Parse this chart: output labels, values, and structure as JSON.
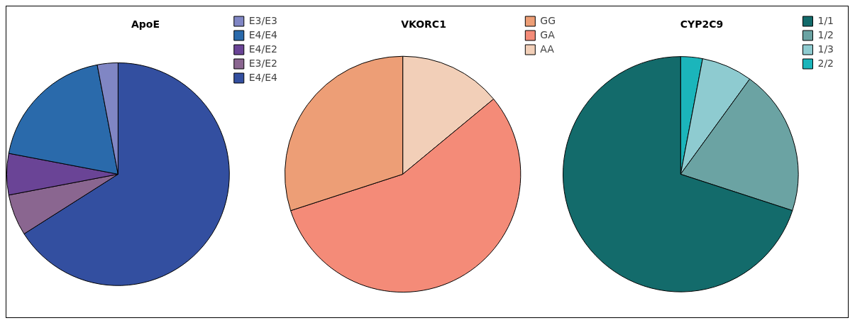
{
  "chart_data": [
    {
      "type": "pie",
      "title": "ApoE",
      "categories": [
        "E3/E3",
        "E4/E4",
        "E4/E2",
        "E3/E2",
        "E4/E4"
      ],
      "values": [
        3,
        19,
        6,
        6,
        66
      ],
      "colors": [
        "#8086c4",
        "#2a6aab",
        "#6a4496",
        "#8a6690",
        "#334fa0"
      ],
      "legend": "top right"
    },
    {
      "type": "pie",
      "title": "VKORC1",
      "categories": [
        "GG",
        "GA",
        "AA"
      ],
      "values": [
        30,
        56,
        14
      ],
      "colors": [
        "#ed9e76",
        "#f48b78",
        "#f2cfb8"
      ],
      "legend": "top right"
    },
    {
      "type": "pie",
      "title": "CYP2C9",
      "categories": [
        "1/1",
        "1/2",
        "1/3",
        "2/2"
      ],
      "values": [
        70,
        20,
        7,
        3
      ],
      "colors": [
        "#136b6b",
        "#6ba3a3",
        "#8ecbd0",
        "#1bb5bb"
      ],
      "legend": "top right"
    }
  ]
}
